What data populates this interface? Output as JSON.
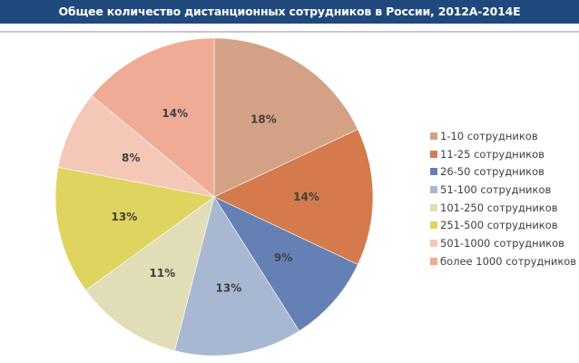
{
  "title": "Общее количество дистанционных сотрудников в России, 2012А-2014Е",
  "chart_data": {
    "type": "pie",
    "title": "Общее количество дистанционных сотрудников в России, 2012А-2014Е",
    "categories": [
      "1-10 сотрудников",
      "11-25 сотрудников",
      "26-50 сотрудников",
      "51-100 сотрудников",
      "101-250 сотрудников",
      "251-500 сотрудников",
      "501-1000 сотрудников",
      "более 1000 сотрудников"
    ],
    "values": [
      18,
      14,
      9,
      13,
      11,
      13,
      8,
      14
    ],
    "labels": [
      "18%",
      "14%",
      "9%",
      "13%",
      "11%",
      "13%",
      "8%",
      "14%"
    ],
    "colors": [
      "#d5a185",
      "#d47a4c",
      "#6580b4",
      "#a8b8d3",
      "#e1ddb7",
      "#dfd45f",
      "#f3c8b6",
      "#f0ab94"
    ],
    "start_angle_deg": 0,
    "direction": "clockwise",
    "legend_position": "right"
  },
  "legend": {
    "items": [
      {
        "label": "1-10 сотрудников",
        "color": "#d5a185"
      },
      {
        "label": "11-25 сотрудников",
        "color": "#d47a4c"
      },
      {
        "label": "26-50 сотрудников",
        "color": "#6580b4"
      },
      {
        "label": "51-100 сотрудников",
        "color": "#a8b8d3"
      },
      {
        "label": "101-250 сотрудников",
        "color": "#e1ddb7"
      },
      {
        "label": "251-500 сотрудников",
        "color": "#dfd45f"
      },
      {
        "label": "501-1000 сотрудников",
        "color": "#f3c8b6"
      },
      {
        "label": "более 1000 сотрудников",
        "color": "#f0ab94"
      }
    ]
  },
  "colors": {
    "header_bg": "#1f497d",
    "header_text": "#ffffff",
    "label_text": "#404040"
  }
}
